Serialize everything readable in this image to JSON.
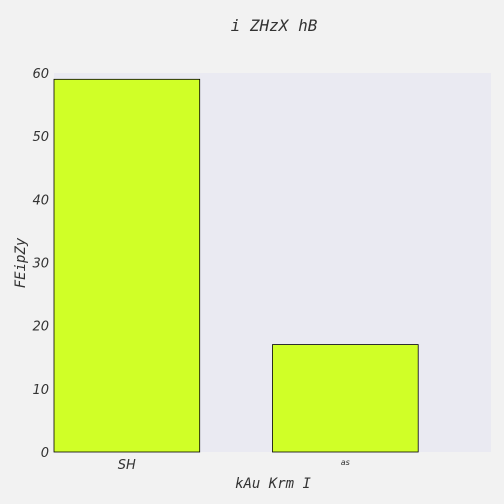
{
  "chart_data": {
    "type": "bar",
    "title": "i   ZHzX hB",
    "xlabel": "kAu  Krm I",
    "ylabel": "FEipZy",
    "categories": [
      "SH",
      "as"
    ],
    "values": [
      59,
      17
    ],
    "ylim": [
      0,
      60
    ],
    "yticks": [
      0,
      10,
      20,
      30,
      40,
      50,
      60
    ],
    "grid": false,
    "colors": {
      "bar_fill": "#d0ff27",
      "bar_edge": "#000000",
      "plot_bg": "#eaeaf2",
      "page_bg": "#f2f2f2",
      "text": "#333333"
    }
  }
}
